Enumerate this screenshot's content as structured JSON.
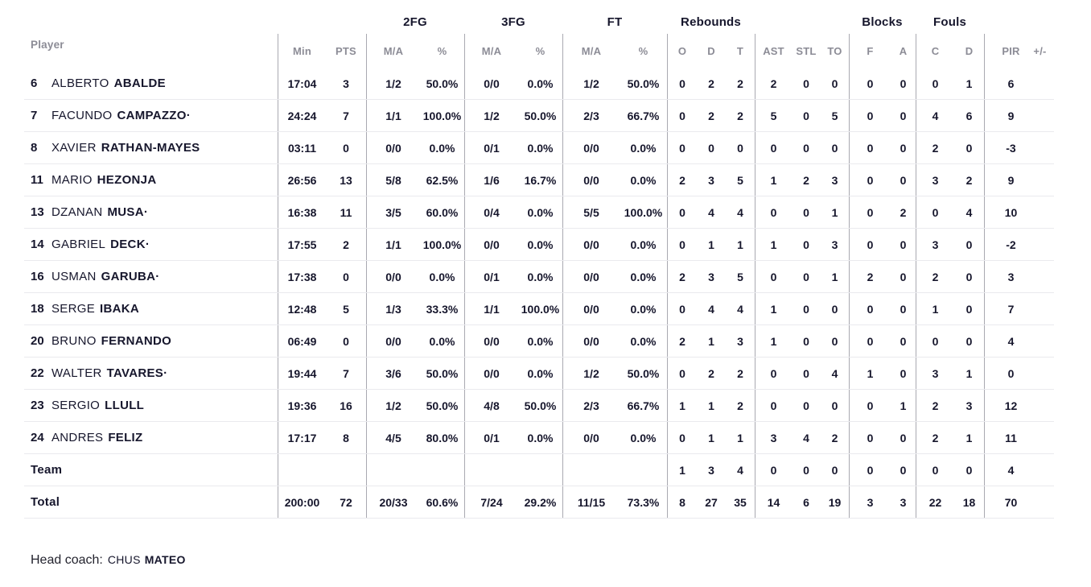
{
  "table": {
    "group_headers": {
      "fg2": "2FG",
      "fg3": "3FG",
      "ft": "FT",
      "rebounds": "Rebounds",
      "blocks": "Blocks",
      "fouls": "Fouls"
    },
    "columns": {
      "player": "Player",
      "min": "Min",
      "pts": "PTS",
      "ma": "M/A",
      "pct": "%",
      "o": "O",
      "d": "D",
      "t": "T",
      "ast": "AST",
      "stl": "STL",
      "to": "TO",
      "f": "F",
      "a": "A",
      "c": "C",
      "pir": "PIR",
      "pm": "+/-"
    },
    "rows": [
      {
        "number": "6",
        "first": "ALBERTO",
        "last": "ABALDE",
        "min": "17:04",
        "pts": "3",
        "fg2_ma": "1/2",
        "fg2_pct": "50.0%",
        "fg3_ma": "0/0",
        "fg3_pct": "0.0%",
        "ft_ma": "1/2",
        "ft_pct": "50.0%",
        "reb_o": "0",
        "reb_d": "2",
        "reb_t": "2",
        "ast": "2",
        "stl": "0",
        "to": "0",
        "blk_f": "0",
        "blk_a": "0",
        "foul_c": "0",
        "foul_d": "1",
        "pir": "6"
      },
      {
        "number": "7",
        "first": "FACUNDO",
        "last": "CAMPAZZO·",
        "min": "24:24",
        "pts": "7",
        "fg2_ma": "1/1",
        "fg2_pct": "100.0%",
        "fg3_ma": "1/2",
        "fg3_pct": "50.0%",
        "ft_ma": "2/3",
        "ft_pct": "66.7%",
        "reb_o": "0",
        "reb_d": "2",
        "reb_t": "2",
        "ast": "5",
        "stl": "0",
        "to": "5",
        "blk_f": "0",
        "blk_a": "0",
        "foul_c": "4",
        "foul_d": "6",
        "pir": "9"
      },
      {
        "number": "8",
        "first": "XAVIER",
        "last": "RATHAN-MAYES",
        "min": "03:11",
        "pts": "0",
        "fg2_ma": "0/0",
        "fg2_pct": "0.0%",
        "fg3_ma": "0/1",
        "fg3_pct": "0.0%",
        "ft_ma": "0/0",
        "ft_pct": "0.0%",
        "reb_o": "0",
        "reb_d": "0",
        "reb_t": "0",
        "ast": "0",
        "stl": "0",
        "to": "0",
        "blk_f": "0",
        "blk_a": "0",
        "foul_c": "2",
        "foul_d": "0",
        "pir": "-3"
      },
      {
        "number": "11",
        "first": "MARIO",
        "last": "HEZONJA",
        "min": "26:56",
        "pts": "13",
        "fg2_ma": "5/8",
        "fg2_pct": "62.5%",
        "fg3_ma": "1/6",
        "fg3_pct": "16.7%",
        "ft_ma": "0/0",
        "ft_pct": "0.0%",
        "reb_o": "2",
        "reb_d": "3",
        "reb_t": "5",
        "ast": "1",
        "stl": "2",
        "to": "3",
        "blk_f": "0",
        "blk_a": "0",
        "foul_c": "3",
        "foul_d": "2",
        "pir": "9"
      },
      {
        "number": "13",
        "first": "DZANAN",
        "last": "MUSA·",
        "min": "16:38",
        "pts": "11",
        "fg2_ma": "3/5",
        "fg2_pct": "60.0%",
        "fg3_ma": "0/4",
        "fg3_pct": "0.0%",
        "ft_ma": "5/5",
        "ft_pct": "100.0%",
        "reb_o": "0",
        "reb_d": "4",
        "reb_t": "4",
        "ast": "0",
        "stl": "0",
        "to": "1",
        "blk_f": "0",
        "blk_a": "2",
        "foul_c": "0",
        "foul_d": "4",
        "pir": "10"
      },
      {
        "number": "14",
        "first": "GABRIEL",
        "last": "DECK·",
        "min": "17:55",
        "pts": "2",
        "fg2_ma": "1/1",
        "fg2_pct": "100.0%",
        "fg3_ma": "0/0",
        "fg3_pct": "0.0%",
        "ft_ma": "0/0",
        "ft_pct": "0.0%",
        "reb_o": "0",
        "reb_d": "1",
        "reb_t": "1",
        "ast": "1",
        "stl": "0",
        "to": "3",
        "blk_f": "0",
        "blk_a": "0",
        "foul_c": "3",
        "foul_d": "0",
        "pir": "-2"
      },
      {
        "number": "16",
        "first": "USMAN",
        "last": "GARUBA·",
        "min": "17:38",
        "pts": "0",
        "fg2_ma": "0/0",
        "fg2_pct": "0.0%",
        "fg3_ma": "0/1",
        "fg3_pct": "0.0%",
        "ft_ma": "0/0",
        "ft_pct": "0.0%",
        "reb_o": "2",
        "reb_d": "3",
        "reb_t": "5",
        "ast": "0",
        "stl": "0",
        "to": "1",
        "blk_f": "2",
        "blk_a": "0",
        "foul_c": "2",
        "foul_d": "0",
        "pir": "3"
      },
      {
        "number": "18",
        "first": "SERGE",
        "last": "IBAKA",
        "min": "12:48",
        "pts": "5",
        "fg2_ma": "1/3",
        "fg2_pct": "33.3%",
        "fg3_ma": "1/1",
        "fg3_pct": "100.0%",
        "ft_ma": "0/0",
        "ft_pct": "0.0%",
        "reb_o": "0",
        "reb_d": "4",
        "reb_t": "4",
        "ast": "1",
        "stl": "0",
        "to": "0",
        "blk_f": "0",
        "blk_a": "0",
        "foul_c": "1",
        "foul_d": "0",
        "pir": "7"
      },
      {
        "number": "20",
        "first": "BRUNO",
        "last": "FERNANDO",
        "min": "06:49",
        "pts": "0",
        "fg2_ma": "0/0",
        "fg2_pct": "0.0%",
        "fg3_ma": "0/0",
        "fg3_pct": "0.0%",
        "ft_ma": "0/0",
        "ft_pct": "0.0%",
        "reb_o": "2",
        "reb_d": "1",
        "reb_t": "3",
        "ast": "1",
        "stl": "0",
        "to": "0",
        "blk_f": "0",
        "blk_a": "0",
        "foul_c": "0",
        "foul_d": "0",
        "pir": "4"
      },
      {
        "number": "22",
        "first": "WALTER",
        "last": "TAVARES·",
        "min": "19:44",
        "pts": "7",
        "fg2_ma": "3/6",
        "fg2_pct": "50.0%",
        "fg3_ma": "0/0",
        "fg3_pct": "0.0%",
        "ft_ma": "1/2",
        "ft_pct": "50.0%",
        "reb_o": "0",
        "reb_d": "2",
        "reb_t": "2",
        "ast": "0",
        "stl": "0",
        "to": "4",
        "blk_f": "1",
        "blk_a": "0",
        "foul_c": "3",
        "foul_d": "1",
        "pir": "0"
      },
      {
        "number": "23",
        "first": "SERGIO",
        "last": "LLULL",
        "min": "19:36",
        "pts": "16",
        "fg2_ma": "1/2",
        "fg2_pct": "50.0%",
        "fg3_ma": "4/8",
        "fg3_pct": "50.0%",
        "ft_ma": "2/3",
        "ft_pct": "66.7%",
        "reb_o": "1",
        "reb_d": "1",
        "reb_t": "2",
        "ast": "0",
        "stl": "0",
        "to": "0",
        "blk_f": "0",
        "blk_a": "1",
        "foul_c": "2",
        "foul_d": "3",
        "pir": "12"
      },
      {
        "number": "24",
        "first": "ANDRES",
        "last": "FELIZ",
        "min": "17:17",
        "pts": "8",
        "fg2_ma": "4/5",
        "fg2_pct": "80.0%",
        "fg3_ma": "0/1",
        "fg3_pct": "0.0%",
        "ft_ma": "0/0",
        "ft_pct": "0.0%",
        "reb_o": "0",
        "reb_d": "1",
        "reb_t": "1",
        "ast": "3",
        "stl": "4",
        "to": "2",
        "blk_f": "0",
        "blk_a": "0",
        "foul_c": "2",
        "foul_d": "1",
        "pir": "11"
      },
      {
        "number": "",
        "first": "",
        "last": "Team",
        "min": "",
        "pts": "",
        "fg2_ma": "",
        "fg2_pct": "",
        "fg3_ma": "",
        "fg3_pct": "",
        "ft_ma": "",
        "ft_pct": "",
        "reb_o": "1",
        "reb_d": "3",
        "reb_t": "4",
        "ast": "0",
        "stl": "0",
        "to": "0",
        "blk_f": "0",
        "blk_a": "0",
        "foul_c": "0",
        "foul_d": "0",
        "pir": "4"
      },
      {
        "number": "",
        "first": "",
        "last": "Total",
        "min": "200:00",
        "pts": "72",
        "fg2_ma": "20/33",
        "fg2_pct": "60.6%",
        "fg3_ma": "7/24",
        "fg3_pct": "29.2%",
        "ft_ma": "11/15",
        "ft_pct": "73.3%",
        "reb_o": "8",
        "reb_d": "27",
        "reb_t": "35",
        "ast": "14",
        "stl": "6",
        "to": "19",
        "blk_f": "3",
        "blk_a": "3",
        "foul_c": "22",
        "foul_d": "18",
        "pir": "70"
      }
    ]
  },
  "footer": {
    "label": "Head coach:",
    "coach_first": "CHUS",
    "coach_last": "MATEO"
  },
  "colors": {
    "text_dark": "#16162c",
    "text_gray": "#8c8c96",
    "divider_vertical": "#a9a9b1",
    "divider_horizontal": "#eaeaee"
  }
}
